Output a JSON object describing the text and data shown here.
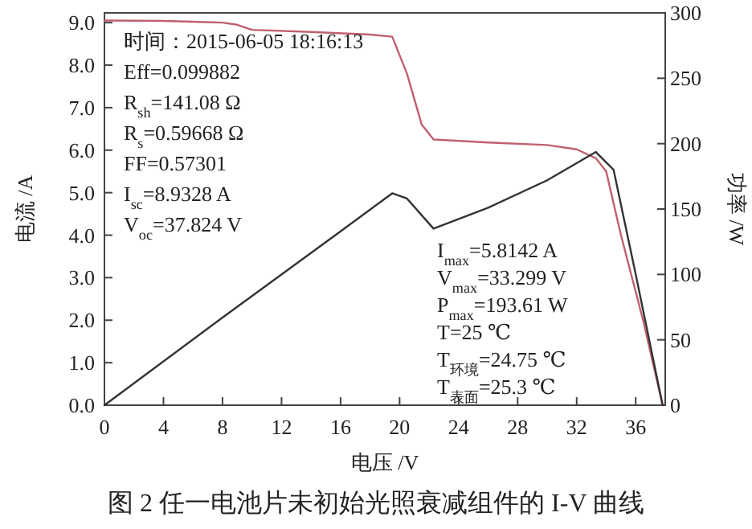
{
  "chart_data": {
    "type": "line",
    "title": "图 2 任一电池片未初始光照衰减组件的 I-V 曲线",
    "xlabel": "电压 /V",
    "ylabel": "电流 /A",
    "y2label": "功率 /W",
    "xlim": [
      0,
      38
    ],
    "xticks": [
      0,
      4,
      8,
      12,
      16,
      20,
      24,
      28,
      32,
      36
    ],
    "ylim": [
      0,
      9.23
    ],
    "yticks": [
      {
        "value": 0,
        "label": "0.0"
      },
      {
        "value": 1,
        "label": "1.0"
      },
      {
        "value": 2,
        "label": "2.0"
      },
      {
        "value": 3,
        "label": "3.0"
      },
      {
        "value": 4,
        "label": "4.0"
      },
      {
        "value": 5,
        "label": "5.0"
      },
      {
        "value": 6,
        "label": "6.0"
      },
      {
        "value": 7,
        "label": "7.0"
      },
      {
        "value": 8,
        "label": "8.0"
      },
      {
        "value": 9,
        "label": "9.0"
      }
    ],
    "y2lim": [
      0,
      300
    ],
    "y2ticks": [
      0,
      50,
      100,
      150,
      200,
      250,
      300
    ],
    "series": [
      {
        "color": "#c0606e",
        "x": [
          0,
          4,
          8,
          9,
          10,
          14,
          18,
          19.5,
          20.5,
          21.5,
          22.3,
          26,
          30,
          32,
          33.3,
          34,
          35,
          36.5,
          37.824
        ],
        "values": [
          9.05,
          9.04,
          9.0,
          8.95,
          8.83,
          8.78,
          8.72,
          8.67,
          7.8,
          6.6,
          6.25,
          6.18,
          6.12,
          6.02,
          5.81,
          5.5,
          4.0,
          2.0,
          0
        ]
      },
      {
        "color": "#333333",
        "axis": "y2",
        "x": [
          0,
          8,
          16,
          19.5,
          20.5,
          22.3,
          26,
          30,
          33.3,
          34.5,
          36,
          37.824
        ],
        "values": [
          0,
          67,
          133,
          162,
          158,
          135,
          151,
          172,
          193.6,
          180,
          100,
          0
        ]
      }
    ],
    "annotations": [
      "时间：2015-06-05  18:16:13",
      "Eff=0.099882",
      "R$_{sh}$=141.08 Ω",
      "R$_{s}$=0.59668 Ω",
      "FF=0.57301",
      "I$_{sc}$=8.9328 A",
      "V$_{oc}$=37.824 V",
      "I$_{max}$=5.8142 A",
      "V$_{max}$=33.299 V",
      "P$_{max}$=193.61 W",
      "T=25 ℃",
      "T$_{环境}$=24.75 ℃",
      "T$_{表面}$=25.3 ℃"
    ]
  }
}
